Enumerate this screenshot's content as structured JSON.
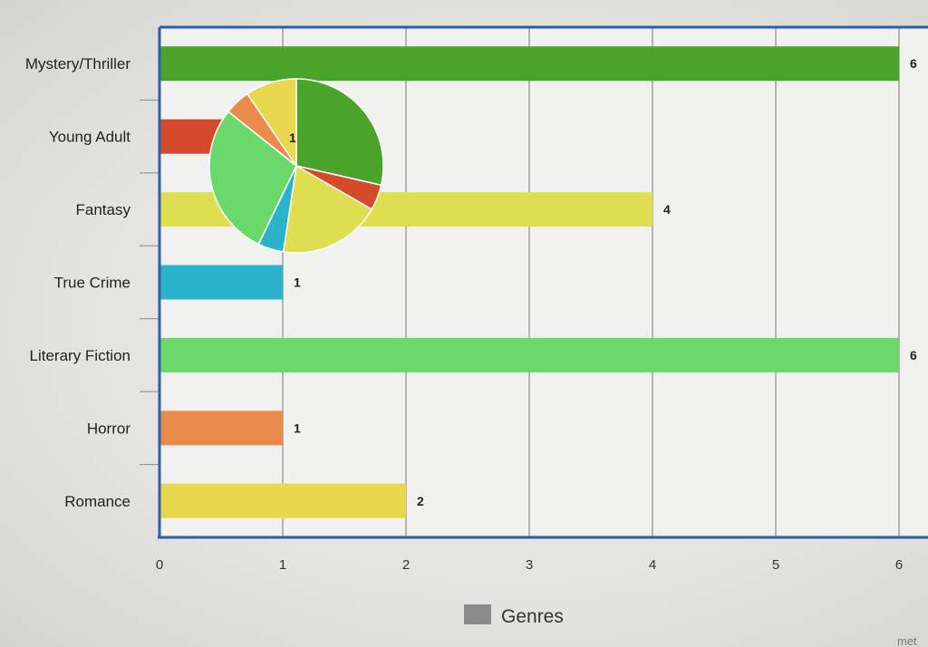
{
  "chart_data": [
    {
      "type": "bar",
      "orientation": "horizontal",
      "categories": [
        "Mystery/Thriller",
        "Young Adult",
        "Fantasy",
        "True Crime",
        "Literary Fiction",
        "Horror",
        "Romance"
      ],
      "values": [
        6,
        1,
        4,
        1,
        6,
        1,
        2
      ],
      "colors": [
        "#4aa42c",
        "#d44a2c",
        "#dede50",
        "#2ab4cc",
        "#6bd86b",
        "#ea8a4c",
        "#e8d84e"
      ],
      "value_labels": [
        "6",
        "",
        "4",
        "1",
        "6",
        "1",
        "2"
      ],
      "xlim": [
        0,
        6
      ],
      "x_ticks": [
        "0",
        "1",
        "2",
        "3",
        "4",
        "5",
        "6"
      ],
      "grid": true,
      "legend": {
        "label": "Genres",
        "placement": "bottom-center",
        "color": "#8a8a8a"
      }
    },
    {
      "type": "pie",
      "values": [
        6,
        1,
        4,
        1,
        6,
        1,
        2
      ],
      "colors": [
        "#4aa42c",
        "#d44a2c",
        "#dede50",
        "#2ab4cc",
        "#6bd86b",
        "#ea8a4c",
        "#e8d84e"
      ],
      "visible_label": "1"
    }
  ],
  "corner_text": "met"
}
